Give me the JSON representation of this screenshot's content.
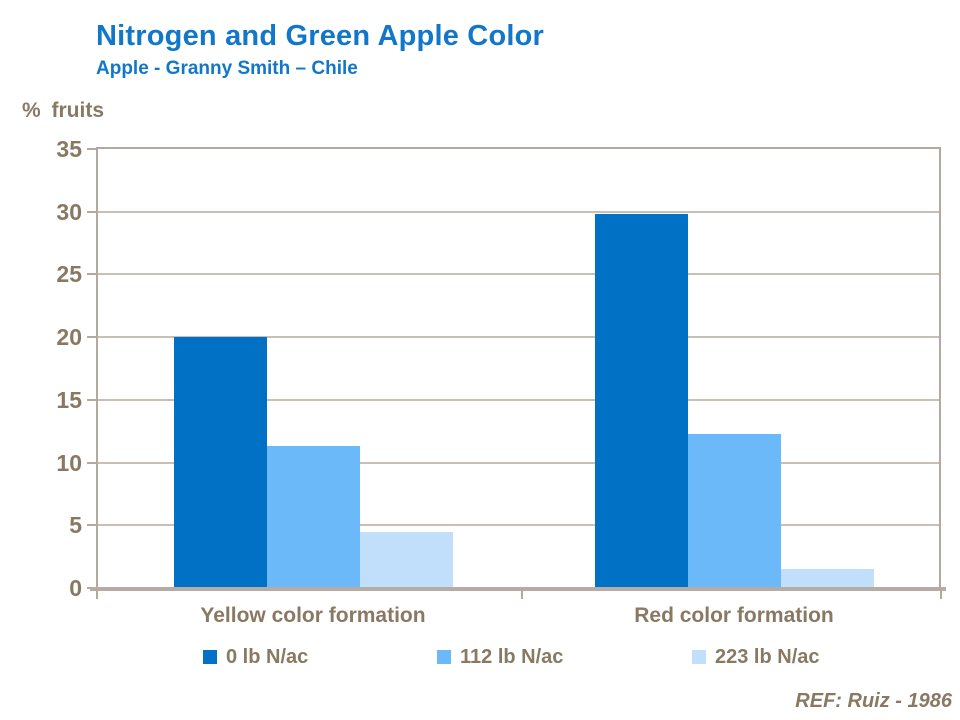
{
  "header": {
    "title": "Nitrogen and Green Apple Color",
    "subtitle": "Apple - Granny Smith – Chile"
  },
  "footer": {
    "reference": "REF: Ruiz - 1986"
  },
  "colors": {
    "title_blue": "#1277C9",
    "text_brown": "#8A7962",
    "plot_border": "#B3A99E",
    "gridline": "#C9C0B5",
    "baseline": "#B5ADA5"
  },
  "chart_data": {
    "type": "bar",
    "title": "Nitrogen and Green Apple Color",
    "subtitle": "Apple - Granny Smith – Chile",
    "categories": [
      "Yellow color formation",
      "Red color formation"
    ],
    "series": [
      {
        "name": "0 lb N/ac",
        "color": "#0071C5",
        "values": [
          20.0,
          29.8
        ]
      },
      {
        "name": "112 lb N/ac",
        "color": "#6CB9FA",
        "values": [
          11.3,
          12.3
        ]
      },
      {
        "name": "223 lb N/ac",
        "color": "#C1DFFB",
        "values": [
          4.5,
          1.5
        ]
      }
    ],
    "xlabel": "",
    "ylabel": "% fruits",
    "ylim": [
      0,
      35
    ],
    "ytick_step": 5,
    "grid": true,
    "legend_position": "bottom"
  }
}
